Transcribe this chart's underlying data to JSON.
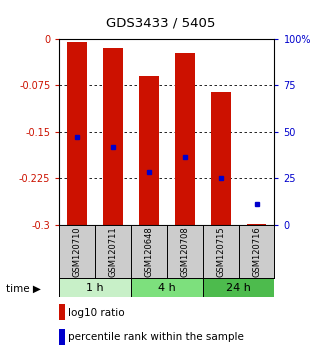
{
  "title": "GDS3433 / 5405",
  "samples": [
    "GSM120710",
    "GSM120711",
    "GSM120648",
    "GSM120708",
    "GSM120715",
    "GSM120716"
  ],
  "time_groups": [
    {
      "label": "1 h",
      "start": 0,
      "end": 2,
      "color": "#c8f0c8"
    },
    {
      "label": "4 h",
      "start": 2,
      "end": 4,
      "color": "#7de07d"
    },
    {
      "label": "24 h",
      "start": 4,
      "end": 6,
      "color": "#4dbb4d"
    }
  ],
  "bar_top": [
    -0.005,
    -0.015,
    -0.06,
    -0.022,
    -0.085,
    -0.298
  ],
  "bar_bottom": [
    -0.3,
    -0.3,
    -0.3,
    -0.3,
    -0.3,
    -0.3
  ],
  "percentile_values": [
    -0.158,
    -0.175,
    -0.215,
    -0.19,
    -0.225,
    -0.267
  ],
  "bar_color": "#cc1100",
  "blue_color": "#0000cc",
  "ylim_left": [
    -0.3,
    0
  ],
  "ylim_right": [
    0,
    100
  ],
  "yticks_left": [
    0,
    -0.075,
    -0.15,
    -0.225,
    -0.3
  ],
  "yticks_right": [
    0,
    25,
    50,
    75,
    100
  ],
  "background_color": "#ffffff",
  "bar_width": 0.55,
  "label_log10": "log10 ratio",
  "label_pct": "percentile rank within the sample"
}
